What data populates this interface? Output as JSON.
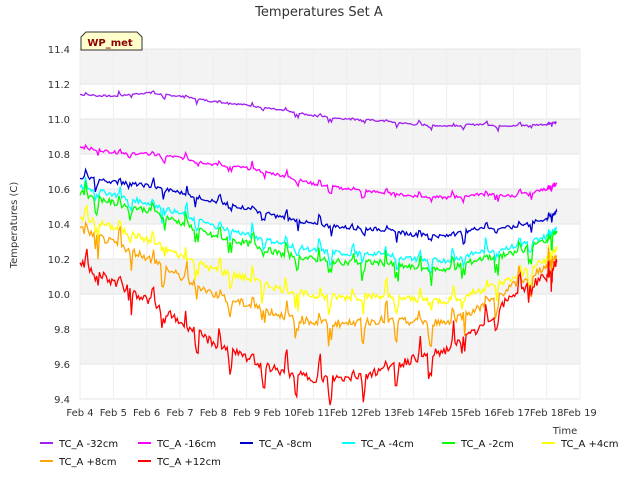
{
  "chart_data": {
    "type": "line",
    "title": "Temperatures Set A",
    "xlabel": "Time",
    "ylabel": "Temperatures (C)",
    "badge": "WP_met",
    "ylim": [
      9.4,
      11.4
    ],
    "yticks": [
      "9.4",
      "9.6",
      "9.8",
      "10.0",
      "10.2",
      "10.4",
      "10.6",
      "10.8",
      "11.0",
      "11.2",
      "11.4"
    ],
    "xlim": [
      4,
      19
    ],
    "xticks": [
      "Feb 4",
      "Feb 5",
      "Feb 6",
      "Feb 7",
      "Feb 8",
      "Feb 9",
      "Feb 10",
      "Feb 11",
      "Feb 12",
      "Feb 13",
      "Feb 14",
      "Feb 15",
      "Feb 16",
      "Feb 17",
      "Feb 18",
      "Feb 19"
    ],
    "x": [
      4,
      5,
      6,
      7,
      8,
      9,
      10,
      11,
      12,
      13,
      14,
      15,
      16,
      17,
      18,
      18.3
    ],
    "series": [
      {
        "name": "TC_A -32cm",
        "color": "#a020f0",
        "values": [
          11.14,
          11.13,
          11.15,
          11.13,
          11.1,
          11.08,
          11.05,
          11.02,
          11.0,
          10.99,
          10.97,
          10.96,
          10.97,
          10.96,
          10.97,
          10.98
        ]
      },
      {
        "name": "TC_A -16cm",
        "color": "#ff00ff",
        "values": [
          10.84,
          10.81,
          10.8,
          10.78,
          10.74,
          10.72,
          10.68,
          10.63,
          10.6,
          10.58,
          10.56,
          10.55,
          10.57,
          10.56,
          10.6,
          10.63
        ]
      },
      {
        "name": "TC_A -8cm",
        "color": "#0000cd",
        "values": [
          10.67,
          10.64,
          10.62,
          10.58,
          10.53,
          10.49,
          10.44,
          10.4,
          10.38,
          10.37,
          10.34,
          10.33,
          10.38,
          10.38,
          10.43,
          10.47
        ]
      },
      {
        "name": "TC_A -4cm",
        "color": "#00ffff",
        "values": [
          10.61,
          10.57,
          10.52,
          10.46,
          10.39,
          10.34,
          10.29,
          10.25,
          10.23,
          10.23,
          10.2,
          10.19,
          10.24,
          10.27,
          10.33,
          10.38
        ]
      },
      {
        "name": "TC_A -2cm",
        "color": "#00ff00",
        "values": [
          10.58,
          10.52,
          10.48,
          10.41,
          10.33,
          10.29,
          10.23,
          10.2,
          10.18,
          10.18,
          10.15,
          10.14,
          10.2,
          10.23,
          10.31,
          10.36
        ]
      },
      {
        "name": "TC_A +4cm",
        "color": "#ffff00",
        "values": [
          10.44,
          10.38,
          10.31,
          10.22,
          10.14,
          10.09,
          10.03,
          9.99,
          9.98,
          9.99,
          9.97,
          9.96,
          10.02,
          10.09,
          10.2,
          10.26
        ]
      },
      {
        "name": "TC_A +8cm",
        "color": "#ffa500",
        "values": [
          10.37,
          10.29,
          10.21,
          10.1,
          10.0,
          9.94,
          9.88,
          9.84,
          9.83,
          9.85,
          9.84,
          9.84,
          9.92,
          10.05,
          10.16,
          10.22
        ]
      },
      {
        "name": "TC_A +12cm",
        "color": "#ff0000",
        "values": [
          10.18,
          10.07,
          9.97,
          9.84,
          9.72,
          9.63,
          9.56,
          9.52,
          9.52,
          9.56,
          9.63,
          9.68,
          9.8,
          10.0,
          10.1,
          10.18
        ]
      }
    ],
    "legend_placement": "bottom",
    "grid": true,
    "background_bands": "#f3f3f3"
  }
}
